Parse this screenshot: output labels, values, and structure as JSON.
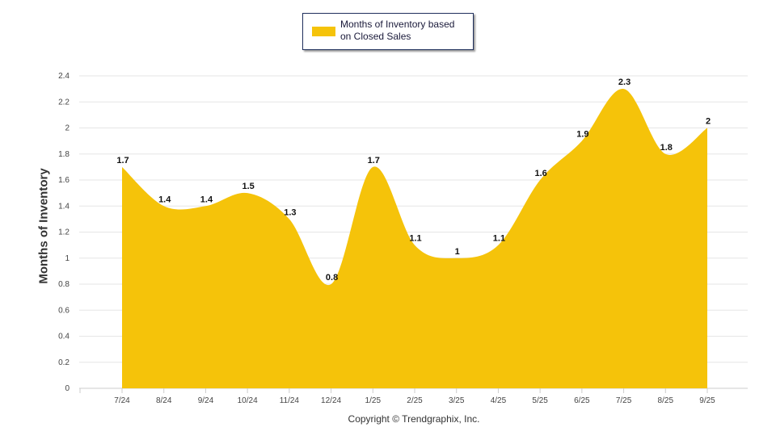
{
  "chart_data": {
    "type": "area",
    "title": "",
    "legend": {
      "label": "Months of Inventory based on Closed Sales",
      "placement": "top-center"
    },
    "xlabel": "",
    "ylabel": "Months of Inventory",
    "categories": [
      "7/24",
      "8/24",
      "9/24",
      "10/24",
      "11/24",
      "12/24",
      "1/25",
      "2/25",
      "3/25",
      "4/25",
      "5/25",
      "6/25",
      "7/25",
      "8/25",
      "9/25"
    ],
    "series": [
      {
        "name": "Months of Inventory based on Closed Sales",
        "values": [
          1.7,
          1.4,
          1.4,
          1.5,
          1.3,
          0.8,
          1.7,
          1.1,
          1,
          1.1,
          1.6,
          1.9,
          2.3,
          1.8,
          2
        ],
        "color": "#f5c30a"
      }
    ],
    "data_labels": [
      "1.7",
      "1.4",
      "1.4",
      "1.5",
      "1.3",
      "0.8",
      "1.7",
      "1.1",
      "1",
      "1.1",
      "1.6",
      "1.9",
      "2.3",
      "1.8",
      "2"
    ],
    "ylim": [
      0,
      2.4
    ],
    "yticks": [
      "0",
      "0.2",
      "0.4",
      "0.6",
      "0.8",
      "1",
      "1.2",
      "1.4",
      "1.6",
      "1.8",
      "2",
      "2.2",
      "2.4"
    ],
    "grid": true
  },
  "legend_lines": [
    "Months of Inventory based",
    "on Closed Sales"
  ],
  "copyright": "Copyright © Trendgraphix, Inc."
}
